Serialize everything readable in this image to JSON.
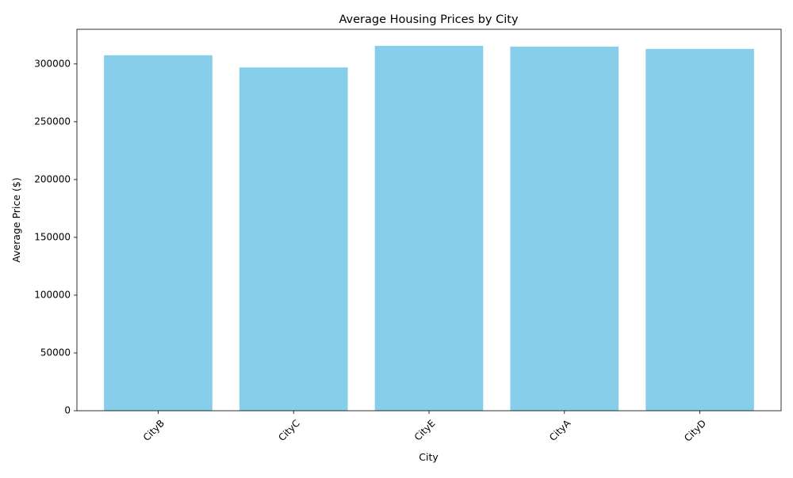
{
  "chart_data": {
    "type": "bar",
    "title": "Average Housing Prices by City",
    "xlabel": "City",
    "ylabel": "Average Price ($)",
    "categories": [
      "CityB",
      "CityC",
      "CityE",
      "CityA",
      "CityD"
    ],
    "values": [
      307500,
      297000,
      315700,
      315000,
      313000
    ],
    "ylim": [
      0,
      330000
    ],
    "yticks": [
      0,
      50000,
      100000,
      150000,
      200000,
      250000,
      300000
    ],
    "ytick_labels": [
      "0",
      "50000",
      "100000",
      "150000",
      "200000",
      "250000",
      "300000"
    ],
    "xtick_rotation_deg": 45,
    "grid": false,
    "legend": "none",
    "colors": {
      "bar": "#87ceeb",
      "axis": "#000000"
    }
  }
}
